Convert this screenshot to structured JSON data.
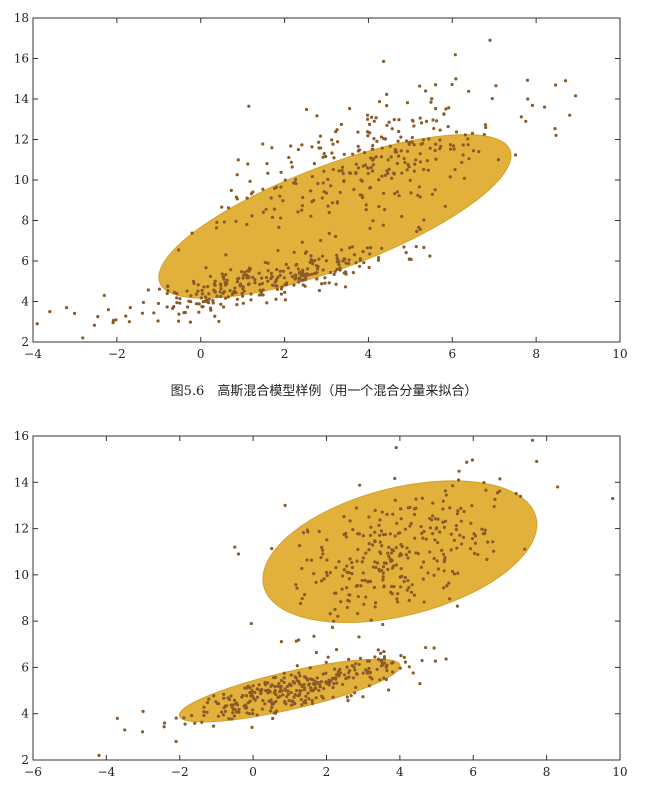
{
  "caption": "图5.6　高斯混合模型样例（用一个混合分量来拟合）",
  "colors": {
    "ellipse_fill": "#e2b13c",
    "ellipse_stroke": "#d4a12a",
    "point": "#8a5a28",
    "axis": "#333333"
  },
  "chart_data": [
    {
      "type": "scatter",
      "title": "",
      "xlabel": "",
      "ylabel": "",
      "xlim": [
        -4,
        10
      ],
      "ylim": [
        2,
        18
      ],
      "x_ticks": [
        -4,
        -2,
        0,
        2,
        4,
        6,
        8,
        10
      ],
      "y_ticks": [
        2,
        4,
        6,
        8,
        10,
        12,
        14,
        16,
        18
      ],
      "x_tick_labels": [
        "−4",
        "−2",
        "0",
        "2",
        "4",
        "6",
        "8",
        "10"
      ],
      "y_tick_labels": [
        "2",
        "4",
        "6",
        "8",
        "10",
        "12",
        "14",
        "16",
        "18"
      ],
      "grid": false,
      "ellipses": [
        {
          "center": [
            3.2,
            8.2
          ],
          "semi_axes": [
            5.3,
            1.7
          ],
          "angle_deg": 38
        }
      ],
      "clusters": [
        {
          "center": [
            1.5,
            5.0
          ],
          "spread": [
            1.6,
            0.5
          ],
          "slope": 0.45,
          "count": 300
        },
        {
          "center": [
            4.0,
            11.0
          ],
          "spread": [
            1.6,
            1.5
          ],
          "slope": 0.6,
          "count": 300
        }
      ],
      "outliers": [
        [
          6.9,
          16.9
        ],
        [
          -3.6,
          3.5
        ],
        [
          -3.9,
          2.9
        ],
        [
          -3.2,
          3.7
        ],
        [
          8.7,
          14.9
        ],
        [
          8.2,
          13.6
        ],
        [
          7.8,
          14.0
        ],
        [
          7.1,
          11.0
        ],
        [
          -2.3,
          4.3
        ],
        [
          8.8,
          13.2
        ]
      ]
    },
    {
      "type": "scatter",
      "title": "",
      "xlabel": "",
      "ylabel": "",
      "xlim": [
        -6,
        10
      ],
      "ylim": [
        2,
        16
      ],
      "x_ticks": [
        -6,
        -4,
        -2,
        0,
        2,
        4,
        6,
        8,
        10
      ],
      "y_ticks": [
        2,
        4,
        6,
        8,
        10,
        12,
        14,
        16
      ],
      "x_tick_labels": [
        "−6",
        "−4",
        "−2",
        "0",
        "2",
        "4",
        "6",
        "8",
        "10"
      ],
      "y_tick_labels": [
        "2",
        "4",
        "6",
        "8",
        "10",
        "12",
        "14",
        "16"
      ],
      "grid": false,
      "ellipses": [
        {
          "center": [
            1.0,
            5.0
          ],
          "semi_axes": [
            3.2,
            0.75
          ],
          "angle_deg": 20
        },
        {
          "center": [
            4.0,
            11.0
          ],
          "semi_axes": [
            4.0,
            2.5
          ],
          "angle_deg": 22
        }
      ],
      "clusters": [
        {
          "center": [
            1.0,
            5.0
          ],
          "spread": [
            1.5,
            0.4
          ],
          "slope": 0.38,
          "count": 320
        },
        {
          "center": [
            4.0,
            11.0
          ],
          "spread": [
            1.5,
            1.4
          ],
          "slope": 0.5,
          "count": 300
        }
      ],
      "outliers": [
        [
          -4.2,
          2.2
        ],
        [
          -3.7,
          3.8
        ],
        [
          -3.5,
          3.3
        ],
        [
          -3.0,
          4.1
        ],
        [
          9.8,
          13.3
        ],
        [
          8.3,
          13.8
        ],
        [
          -0.5,
          11.2
        ],
        [
          -0.4,
          10.9
        ],
        [
          3.9,
          15.5
        ],
        [
          -2.1,
          2.8
        ]
      ]
    }
  ]
}
